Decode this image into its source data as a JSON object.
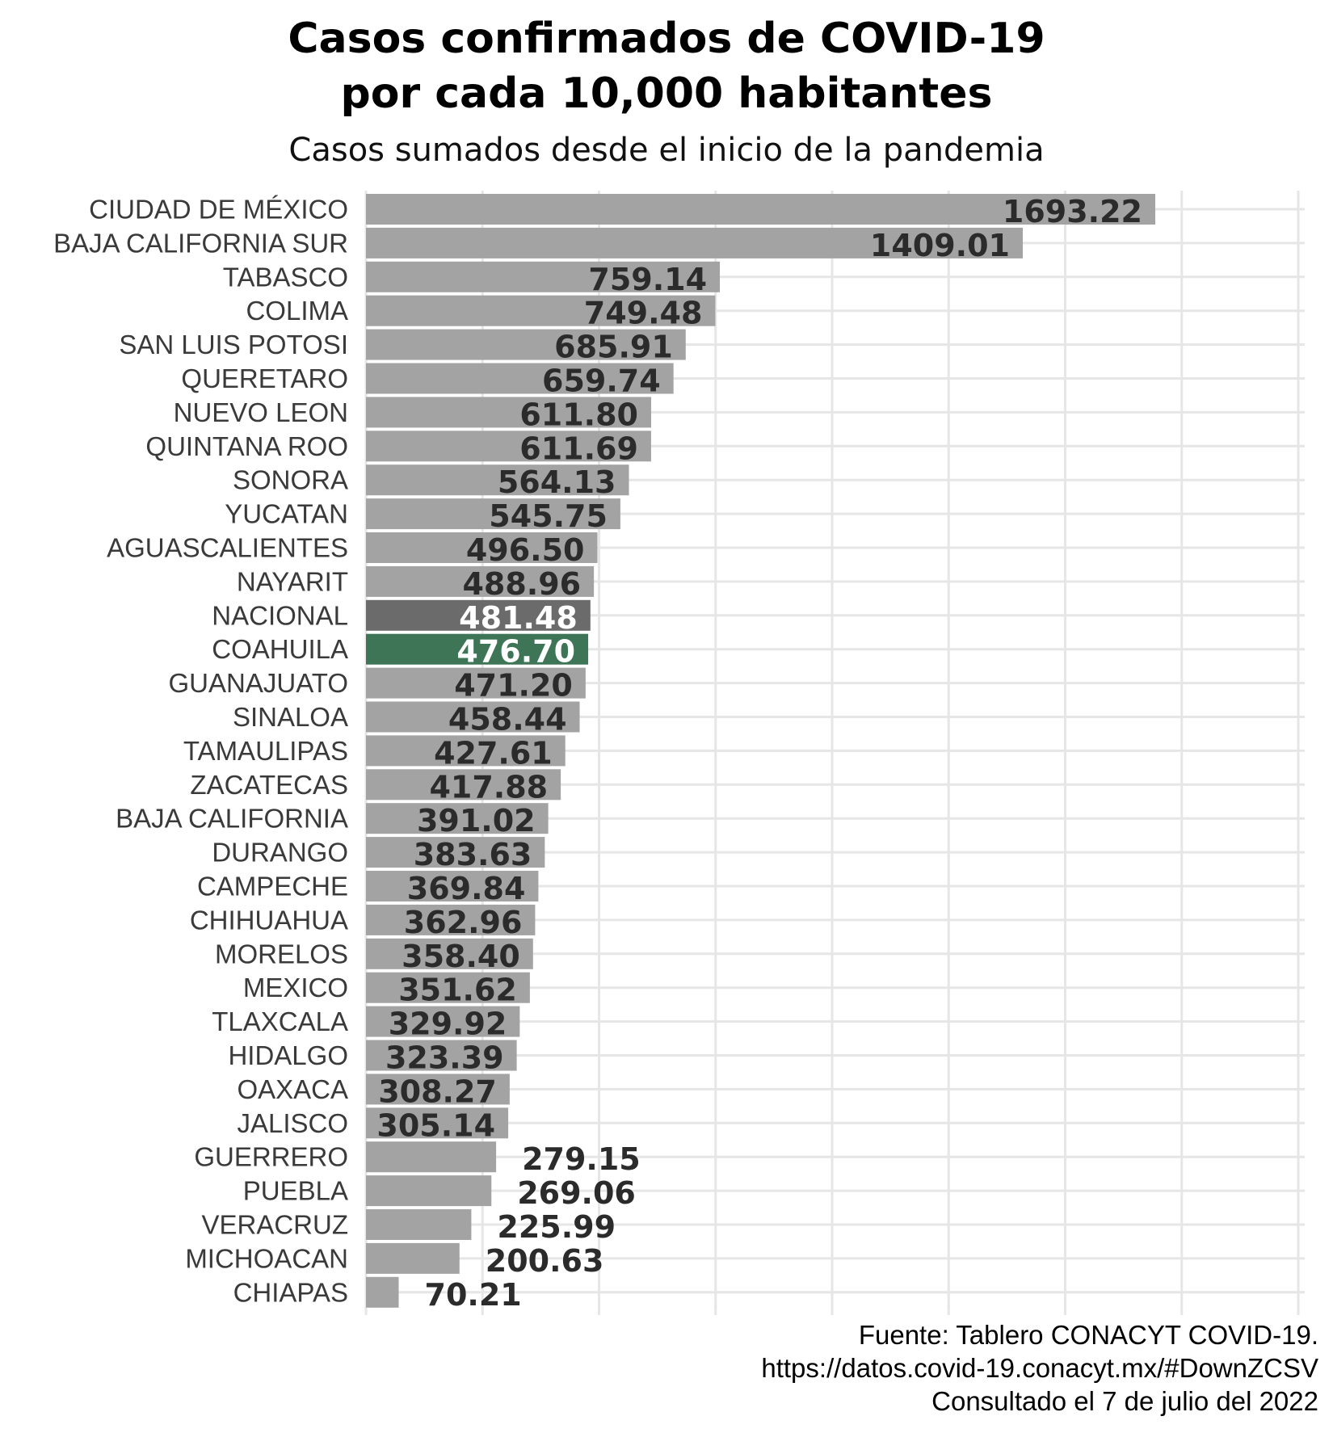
{
  "chart_data": {
    "type": "bar",
    "orientation": "horizontal",
    "title_lines": [
      "Casos confirmados de COVID-19",
      "por cada 10,000 habitantes"
    ],
    "subtitle": "Casos sumados desde el inicio de la pandemia",
    "xlabel": "",
    "ylabel": "",
    "xlim": [
      0,
      2000
    ],
    "grid": true,
    "categories": [
      "CIUDAD DE MÉXICO",
      "BAJA CALIFORNIA SUR",
      "TABASCO",
      "COLIMA",
      "SAN LUIS POTOSI",
      "QUERETARO",
      "NUEVO LEON",
      "QUINTANA ROO",
      "SONORA",
      "YUCATAN",
      "AGUASCALIENTES",
      "NAYARIT",
      "NACIONAL",
      "COAHUILA",
      "GUANAJUATO",
      "SINALOA",
      "TAMAULIPAS",
      "ZACATECAS",
      "BAJA CALIFORNIA",
      "DURANGO",
      "CAMPECHE",
      "CHIHUAHUA",
      "MORELOS",
      "MEXICO",
      "TLAXCALA",
      "HIDALGO",
      "OAXACA",
      "JALISCO",
      "GUERRERO",
      "PUEBLA",
      "VERACRUZ",
      "MICHOACAN",
      "CHIAPAS"
    ],
    "values": [
      1693.22,
      1409.01,
      759.14,
      749.48,
      685.91,
      659.74,
      611.8,
      611.69,
      564.13,
      545.75,
      496.5,
      488.96,
      481.48,
      476.7,
      471.2,
      458.44,
      427.61,
      417.88,
      391.02,
      383.63,
      369.84,
      362.96,
      358.4,
      351.62,
      329.92,
      323.39,
      308.27,
      305.14,
      279.15,
      269.06,
      225.99,
      200.63,
      70.21
    ],
    "value_labels": [
      "1693.22",
      "1409.01",
      "759.14",
      "749.48",
      "685.91",
      "659.74",
      "611.80",
      "611.69",
      "564.13",
      "545.75",
      "496.50",
      "488.96",
      "481.48",
      "476.70",
      "471.20",
      "458.44",
      "427.61",
      "417.88",
      "391.02",
      "383.63",
      "369.84",
      "362.96",
      "358.40",
      "351.62",
      "329.92",
      "323.39",
      "308.27",
      "305.14",
      "279.15",
      "269.06",
      "225.99",
      "200.63",
      "70.21"
    ],
    "colors": {
      "default_bar": "#a3a3a3",
      "highlight_national": "#6b6b6b",
      "highlight_coahuila": "#3d7556",
      "label_dark": "#2b2b2b",
      "label_light": "#ffffff",
      "grid": "#e6e6e6"
    },
    "highlights": {
      "NACIONAL": "highlight_national",
      "COAHUILA": "highlight_coahuila"
    },
    "outside_label_threshold": 300
  },
  "caption": {
    "line1": "Fuente: Tablero CONACYT COVID-19.",
    "line2": "https://datos.covid-19.conacyt.mx/#DownZCSV",
    "line3": "Consultado el 7 de julio del 2022"
  }
}
